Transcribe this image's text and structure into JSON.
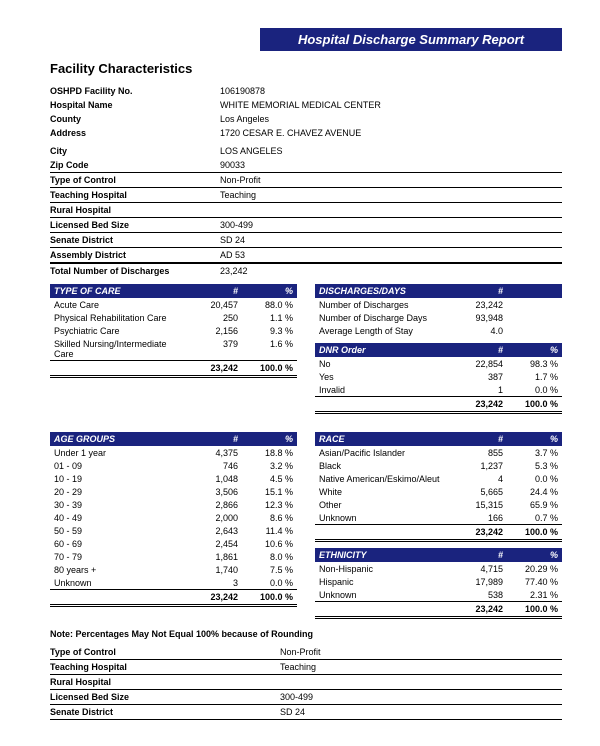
{
  "report": {
    "title": "Hospital Discharge Summary Report",
    "section_title": "Facility Characteristics",
    "note": "Note:  Percentages May Not Equal 100% because of Rounding"
  },
  "facility": {
    "rows": [
      {
        "label": "OSHPD Facility No.",
        "value": "106190878",
        "border": false
      },
      {
        "label": "Hospital Name",
        "value": "WHITE MEMORIAL MEDICAL CENTER",
        "border": false
      },
      {
        "label": "County",
        "value": "Los Angeles",
        "border": false
      },
      {
        "label": "Address",
        "value": "1720 CESAR E. CHAVEZ AVENUE",
        "border": false
      },
      {
        "label": "",
        "value": "",
        "border": false
      },
      {
        "label": "City",
        "value": "LOS ANGELES",
        "border": false
      },
      {
        "label": "Zip Code",
        "value": "90033",
        "border": true
      },
      {
        "label": "Type of Control",
        "value": "Non-Profit",
        "border": true
      },
      {
        "label": "Teaching Hospital",
        "value": "Teaching",
        "border": true
      },
      {
        "label": "Rural Hospital",
        "value": "",
        "border": true
      },
      {
        "label": "Licensed Bed Size",
        "value": "300-499",
        "border": true
      },
      {
        "label": "Senate District",
        "value": "SD 24",
        "border": true
      },
      {
        "label": "Assembly District",
        "value": "AD 53",
        "border": true
      },
      {
        "label": "Total Number of Discharges",
        "value": "23,242",
        "border": false,
        "border_top": true
      }
    ]
  },
  "type_of_care": {
    "title": "TYPE OF CARE",
    "cols": {
      "num": "#",
      "pct": "%"
    },
    "rows": [
      {
        "label": "Acute Care",
        "num": "20,457",
        "pct": "88.0 %"
      },
      {
        "label": "Physical Rehabilitation Care",
        "num": "250",
        "pct": "1.1 %"
      },
      {
        "label": "Psychiatric Care",
        "num": "2,156",
        "pct": "9.3 %"
      },
      {
        "label": "Skilled Nursing/Intermediate Care",
        "num": "379",
        "pct": "1.6 %"
      }
    ],
    "total": {
      "num": "23,242",
      "pct": "100.0 %"
    }
  },
  "discharges_days": {
    "title": "DISCHARGES/DAYS",
    "cols": {
      "num": "#"
    },
    "rows": [
      {
        "label": "Number of Discharges",
        "num": "23,242"
      },
      {
        "label": "Number of Discharge Days",
        "num": "93,948"
      },
      {
        "label": "Average Length of Stay",
        "num": "4.0"
      }
    ]
  },
  "dnr": {
    "title": "DNR Order",
    "cols": {
      "num": "#",
      "pct": "%"
    },
    "rows": [
      {
        "label": "No",
        "num": "22,854",
        "pct": "98.3 %"
      },
      {
        "label": "Yes",
        "num": "387",
        "pct": "1.7 %"
      },
      {
        "label": "Invalid",
        "num": "1",
        "pct": "0.0 %"
      }
    ],
    "total": {
      "num": "23,242",
      "pct": "100.0 %"
    }
  },
  "age_groups": {
    "title": "AGE GROUPS",
    "cols": {
      "num": "#",
      "pct": "%"
    },
    "rows": [
      {
        "label": "Under 1 year",
        "num": "4,375",
        "pct": "18.8 %"
      },
      {
        "label": "01 - 09",
        "num": "746",
        "pct": "3.2 %"
      },
      {
        "label": "10 - 19",
        "num": "1,048",
        "pct": "4.5 %"
      },
      {
        "label": "20 - 29",
        "num": "3,506",
        "pct": "15.1 %"
      },
      {
        "label": "30 - 39",
        "num": "2,866",
        "pct": "12.3 %"
      },
      {
        "label": "40 - 49",
        "num": "2,000",
        "pct": "8.6 %"
      },
      {
        "label": "50 - 59",
        "num": "2,643",
        "pct": "11.4 %"
      },
      {
        "label": "60 - 69",
        "num": "2,454",
        "pct": "10.6 %"
      },
      {
        "label": "70 - 79",
        "num": "1,861",
        "pct": "8.0 %"
      },
      {
        "label": "80 years +",
        "num": "1,740",
        "pct": "7.5 %"
      },
      {
        "label": "Unknown",
        "num": "3",
        "pct": "0.0 %"
      }
    ],
    "total": {
      "num": "23,242",
      "pct": "100.0 %"
    }
  },
  "race": {
    "title": "RACE",
    "cols": {
      "num": "#",
      "pct": "%"
    },
    "rows": [
      {
        "label": "Asian/Pacific Islander",
        "num": "855",
        "pct": "3.7 %"
      },
      {
        "label": "Black",
        "num": "1,237",
        "pct": "5.3 %"
      },
      {
        "label": "Native American/Eskimo/Aleut",
        "num": "4",
        "pct": "0.0 %"
      },
      {
        "label": "White",
        "num": "5,665",
        "pct": "24.4 %"
      },
      {
        "label": "Other",
        "num": "15,315",
        "pct": "65.9 %"
      },
      {
        "label": "Unknown",
        "num": "166",
        "pct": "0.7 %"
      }
    ],
    "total": {
      "num": "23,242",
      "pct": "100.0 %"
    }
  },
  "ethnicity": {
    "title": "ETHNICITY",
    "cols": {
      "num": "#",
      "pct": "%"
    },
    "rows": [
      {
        "label": "Non-Hispanic",
        "num": "4,715",
        "pct": "20.29 %"
      },
      {
        "label": "Hispanic",
        "num": "17,989",
        "pct": "77.40 %"
      },
      {
        "label": "Unknown",
        "num": "538",
        "pct": "2.31 %"
      }
    ],
    "total": {
      "num": "23,242",
      "pct": "100.0 %"
    }
  },
  "footer": {
    "rows": [
      {
        "label": "Type of Control",
        "value": "Non-Profit"
      },
      {
        "label": "Teaching Hospital",
        "value": "Teaching"
      },
      {
        "label": "Rural Hospital",
        "value": ""
      },
      {
        "label": "Licensed Bed Size",
        "value": "300-499"
      },
      {
        "label": "Senate District",
        "value": "SD 24"
      }
    ]
  }
}
